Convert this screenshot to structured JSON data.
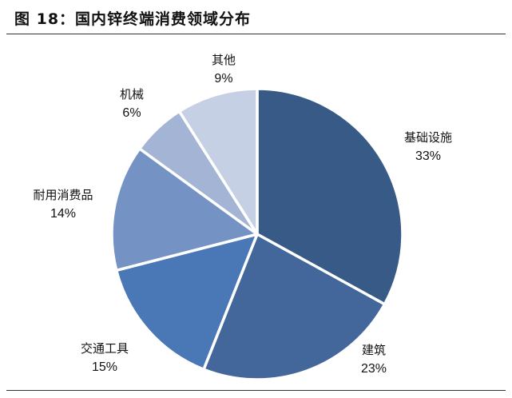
{
  "figure_title": "图 18：国内锌终端消费领域分布",
  "chart_data": {
    "type": "pie",
    "title": "图 18：国内锌终端消费领域分布",
    "categories": [
      "基础设施",
      "建筑",
      "交通工具",
      "耐用消费品",
      "机械",
      "其他"
    ],
    "values": [
      33,
      23,
      15,
      14,
      6,
      9
    ],
    "value_labels": [
      "33%",
      "23%",
      "15%",
      "14%",
      "6%",
      "9%"
    ],
    "colors": [
      "#375a87",
      "#43669b",
      "#4a77b5",
      "#7592c5",
      "#a3b4d5",
      "#c5d0e4"
    ],
    "start_angle_deg": 0,
    "direction": "clockwise",
    "slice_border_color": "#ffffff"
  }
}
